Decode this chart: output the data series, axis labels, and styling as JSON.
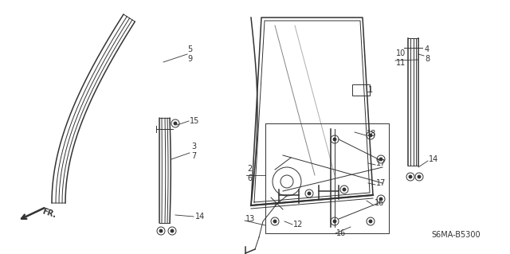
{
  "bg_color": "#ffffff",
  "fig_width": 6.4,
  "fig_height": 3.19,
  "dpi": 100,
  "diagram_code": "S6MA-B5300",
  "color": "#333333"
}
